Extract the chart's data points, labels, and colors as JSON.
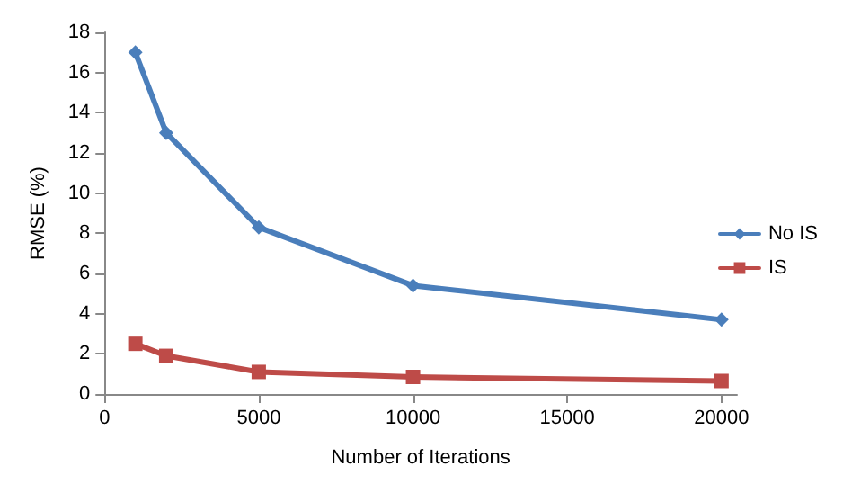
{
  "chart_data": {
    "type": "line",
    "xlabel": "Number of Iterations",
    "ylabel": "RMSE (%)",
    "x": [
      1000,
      2000,
      5000,
      10000,
      20000
    ],
    "series": [
      {
        "name": "No IS",
        "color": "#4a7ebb",
        "marker": "diamond",
        "values": [
          17,
          13,
          8.3,
          5.4,
          3.7
        ]
      },
      {
        "name": "IS",
        "color": "#be4b48",
        "marker": "square",
        "values": [
          2.5,
          1.9,
          1.1,
          0.85,
          0.65
        ]
      }
    ],
    "xlim": [
      0,
      20500
    ],
    "xticks": [
      0,
      5000,
      10000,
      15000,
      20000
    ],
    "ylim": [
      0,
      18
    ],
    "yticks": [
      0,
      2,
      4,
      6,
      8,
      10,
      12,
      14,
      16,
      18
    ],
    "grid": false,
    "legend": "right"
  }
}
